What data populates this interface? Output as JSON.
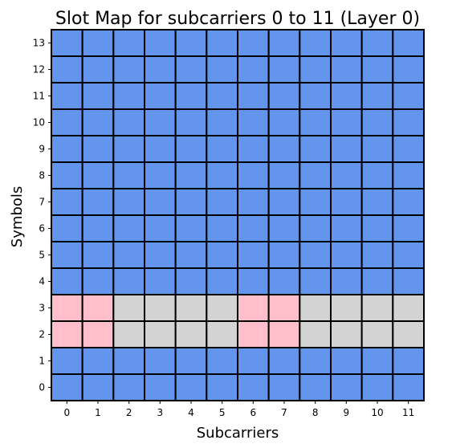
{
  "chart_data": {
    "type": "heatmap",
    "title": "Slot Map for subcarriers 0 to 11 (Layer 0)",
    "xlabel": "Subcarriers",
    "ylabel": "Symbols",
    "x_ticks": [
      "0",
      "1",
      "2",
      "3",
      "4",
      "5",
      "6",
      "7",
      "8",
      "9",
      "10",
      "11"
    ],
    "y_ticks": [
      "0",
      "1",
      "2",
      "3",
      "4",
      "5",
      "6",
      "7",
      "8",
      "9",
      "10",
      "11",
      "12",
      "13"
    ],
    "color_map": {
      "data": "#6495ed",
      "dmrs": "#ffc0cb",
      "empty": "#d3d3d3"
    },
    "cell_border_color": "#000000",
    "grid_by_symbol": [
      [
        "data",
        "data",
        "data",
        "data",
        "data",
        "data",
        "data",
        "data",
        "data",
        "data",
        "data",
        "data"
      ],
      [
        "data",
        "data",
        "data",
        "data",
        "data",
        "data",
        "data",
        "data",
        "data",
        "data",
        "data",
        "data"
      ],
      [
        "dmrs",
        "dmrs",
        "empty",
        "empty",
        "empty",
        "empty",
        "dmrs",
        "dmrs",
        "empty",
        "empty",
        "empty",
        "empty"
      ],
      [
        "dmrs",
        "dmrs",
        "empty",
        "empty",
        "empty",
        "empty",
        "dmrs",
        "dmrs",
        "empty",
        "empty",
        "empty",
        "empty"
      ],
      [
        "data",
        "data",
        "data",
        "data",
        "data",
        "data",
        "data",
        "data",
        "data",
        "data",
        "data",
        "data"
      ],
      [
        "data",
        "data",
        "data",
        "data",
        "data",
        "data",
        "data",
        "data",
        "data",
        "data",
        "data",
        "data"
      ],
      [
        "data",
        "data",
        "data",
        "data",
        "data",
        "data",
        "data",
        "data",
        "data",
        "data",
        "data",
        "data"
      ],
      [
        "data",
        "data",
        "data",
        "data",
        "data",
        "data",
        "data",
        "data",
        "data",
        "data",
        "data",
        "data"
      ],
      [
        "data",
        "data",
        "data",
        "data",
        "data",
        "data",
        "data",
        "data",
        "data",
        "data",
        "data",
        "data"
      ],
      [
        "data",
        "data",
        "data",
        "data",
        "data",
        "data",
        "data",
        "data",
        "data",
        "data",
        "data",
        "data"
      ],
      [
        "data",
        "data",
        "data",
        "data",
        "data",
        "data",
        "data",
        "data",
        "data",
        "data",
        "data",
        "data"
      ],
      [
        "data",
        "data",
        "data",
        "data",
        "data",
        "data",
        "data",
        "data",
        "data",
        "data",
        "data",
        "data"
      ],
      [
        "data",
        "data",
        "data",
        "data",
        "data",
        "data",
        "data",
        "data",
        "data",
        "data",
        "data",
        "data"
      ],
      [
        "data",
        "data",
        "data",
        "data",
        "data",
        "data",
        "data",
        "data",
        "data",
        "data",
        "data",
        "data"
      ]
    ]
  }
}
